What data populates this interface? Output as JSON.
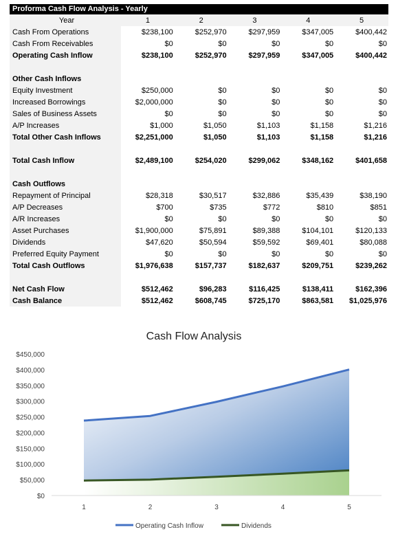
{
  "sheet": {
    "title": "Proforma Cash Flow Analysis - Yearly",
    "header_label": "Year",
    "years": [
      "1",
      "2",
      "3",
      "4",
      "5"
    ],
    "rows": [
      {
        "type": "row",
        "label": "Cash From Operations",
        "values": [
          "$238,100",
          "$252,970",
          "$297,959",
          "$347,005",
          "$400,442"
        ]
      },
      {
        "type": "row",
        "label": "Cash From Receivables",
        "values": [
          "$0",
          "$0",
          "$0",
          "$0",
          "$0"
        ]
      },
      {
        "type": "bold",
        "label": "Operating Cash Inflow",
        "values": [
          "$238,100",
          "$252,970",
          "$297,959",
          "$347,005",
          "$400,442"
        ]
      },
      {
        "type": "blank"
      },
      {
        "type": "section",
        "label": "Other Cash Inflows"
      },
      {
        "type": "row",
        "label": "Equity Investment",
        "values": [
          "$250,000",
          "$0",
          "$0",
          "$0",
          "$0"
        ]
      },
      {
        "type": "row",
        "label": "Increased Borrowings",
        "values": [
          "$2,000,000",
          "$0",
          "$0",
          "$0",
          "$0"
        ]
      },
      {
        "type": "row",
        "label": "Sales of Business Assets",
        "values": [
          "$0",
          "$0",
          "$0",
          "$0",
          "$0"
        ]
      },
      {
        "type": "row",
        "label": "A/P Increases",
        "values": [
          "$1,000",
          "$1,050",
          "$1,103",
          "$1,158",
          "$1,216"
        ]
      },
      {
        "type": "bold",
        "label": "Total Other Cash Inflows",
        "values": [
          "$2,251,000",
          "$1,050",
          "$1,103",
          "$1,158",
          "$1,216"
        ]
      },
      {
        "type": "blank"
      },
      {
        "type": "bold",
        "label": "Total Cash Inflow",
        "values": [
          "$2,489,100",
          "$254,020",
          "$299,062",
          "$348,162",
          "$401,658"
        ]
      },
      {
        "type": "blank"
      },
      {
        "type": "section",
        "label": "Cash Outflows"
      },
      {
        "type": "row",
        "label": "Repayment of Principal",
        "values": [
          "$28,318",
          "$30,517",
          "$32,886",
          "$35,439",
          "$38,190"
        ]
      },
      {
        "type": "row",
        "label": "A/P Decreases",
        "values": [
          "$700",
          "$735",
          "$772",
          "$810",
          "$851"
        ]
      },
      {
        "type": "row",
        "label": "A/R Increases",
        "values": [
          "$0",
          "$0",
          "$0",
          "$0",
          "$0"
        ]
      },
      {
        "type": "row",
        "label": "Asset Purchases",
        "values": [
          "$1,900,000",
          "$75,891",
          "$89,388",
          "$104,101",
          "$120,133"
        ]
      },
      {
        "type": "row",
        "label": "Dividends",
        "values": [
          "$47,620",
          "$50,594",
          "$59,592",
          "$69,401",
          "$80,088"
        ]
      },
      {
        "type": "row",
        "label": "Preferred Equity Payment",
        "values": [
          "$0",
          "$0",
          "$0",
          "$0",
          "$0"
        ]
      },
      {
        "type": "bold",
        "label": "Total Cash Outflows",
        "values": [
          "$1,976,638",
          "$157,737",
          "$182,637",
          "$209,751",
          "$239,262"
        ]
      },
      {
        "type": "blank"
      },
      {
        "type": "bold",
        "label": "Net Cash Flow",
        "values": [
          "$512,462",
          "$96,283",
          "$116,425",
          "$138,411",
          "$162,396"
        ]
      },
      {
        "type": "bold",
        "label": "Cash Balance",
        "values": [
          "$512,462",
          "$608,745",
          "$725,170",
          "$863,581",
          "$1,025,976"
        ]
      }
    ]
  },
  "chart_data": {
    "type": "area",
    "title": "Cash Flow Analysis",
    "x": [
      1,
      2,
      3,
      4,
      5
    ],
    "ylim": [
      0,
      450000
    ],
    "yticks": [
      0,
      50000,
      100000,
      150000,
      200000,
      250000,
      300000,
      350000,
      400000,
      450000
    ],
    "ytick_labels": [
      "$0",
      "$50,000",
      "$100,000",
      "$150,000",
      "$200,000",
      "$250,000",
      "$300,000",
      "$350,000",
      "$400,000",
      "$450,000"
    ],
    "grid": false,
    "legend": "bottom",
    "series": [
      {
        "name": "Operating Cash Inflow",
        "values": [
          238100,
          252970,
          297959,
          347005,
          400442
        ],
        "color": "#4472c4"
      },
      {
        "name": "Dividends",
        "values": [
          47620,
          50594,
          59592,
          69401,
          80088
        ],
        "color": "#375623"
      }
    ]
  }
}
